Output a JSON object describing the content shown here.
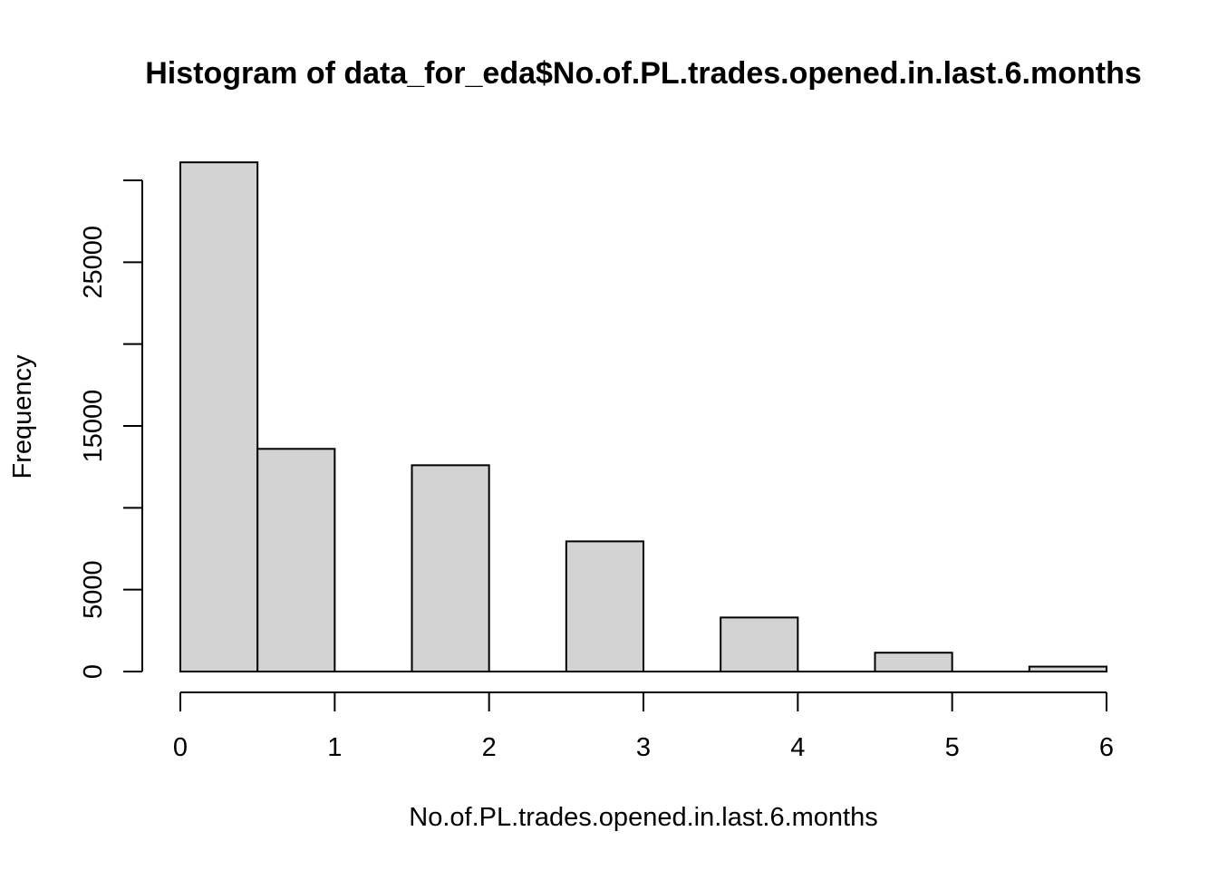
{
  "chart_data": {
    "type": "bar",
    "title": "Histogram of data_for_eda$No.of.PL.trades.opened.in.last.6.months",
    "xlabel": "No.of.PL.trades.opened.in.last.6.months",
    "ylabel": "Frequency",
    "bins": [
      {
        "from": 0.0,
        "to": 0.5,
        "value": 31100
      },
      {
        "from": 0.5,
        "to": 1.0,
        "value": 13600
      },
      {
        "from": 1.0,
        "to": 1.5,
        "value": 0
      },
      {
        "from": 1.5,
        "to": 2.0,
        "value": 12600
      },
      {
        "from": 2.0,
        "to": 2.5,
        "value": 0
      },
      {
        "from": 2.5,
        "to": 3.0,
        "value": 7950
      },
      {
        "from": 3.0,
        "to": 3.5,
        "value": 0
      },
      {
        "from": 3.5,
        "to": 4.0,
        "value": 3300
      },
      {
        "from": 4.0,
        "to": 4.5,
        "value": 0
      },
      {
        "from": 4.5,
        "to": 5.0,
        "value": 1150
      },
      {
        "from": 5.0,
        "to": 5.5,
        "value": 0
      },
      {
        "from": 5.5,
        "to": 6.0,
        "value": 300
      }
    ],
    "xlim": [
      0,
      6
    ],
    "ylim": [
      0,
      30000
    ],
    "x_ticks": [
      0,
      1,
      2,
      3,
      4,
      5,
      6
    ],
    "y_ticks": [
      0,
      5000,
      10000,
      15000,
      20000,
      25000,
      30000
    ],
    "y_tick_labels": [
      "0",
      "5000",
      "",
      "15000",
      "",
      "25000",
      ""
    ],
    "bar_fill": "#d3d3d3",
    "bar_stroke": "#000000",
    "grid": false
  }
}
